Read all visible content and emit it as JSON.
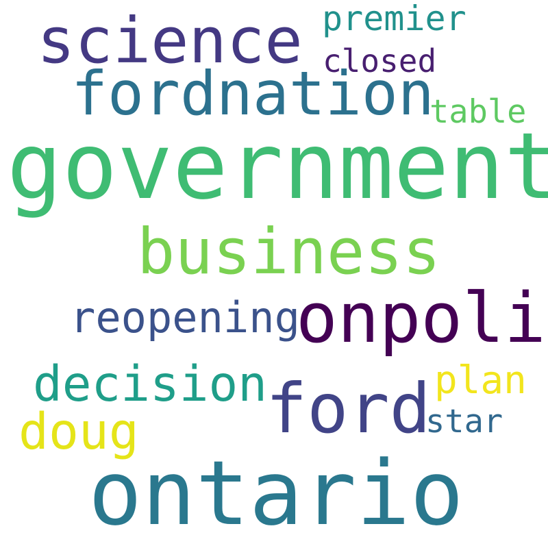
{
  "word_cloud": {
    "words": [
      {
        "text": "science",
        "color": "#443983"
      },
      {
        "text": "premier",
        "color": "#21918c"
      },
      {
        "text": "closed",
        "color": "#481f70"
      },
      {
        "text": "fordnation",
        "color": "#2c718e"
      },
      {
        "text": "table",
        "color": "#5ec962"
      },
      {
        "text": "government",
        "color": "#3fbc73"
      },
      {
        "text": "business",
        "color": "#7ad151"
      },
      {
        "text": "onpoli",
        "color": "#440154"
      },
      {
        "text": "reopening",
        "color": "#3b528b"
      },
      {
        "text": "decision",
        "color": "#1f9e89"
      },
      {
        "text": "plan",
        "color": "#f2e51d"
      },
      {
        "text": "ford",
        "color": "#414487"
      },
      {
        "text": "doug",
        "color": "#e5e419"
      },
      {
        "text": "star",
        "color": "#31688e"
      },
      {
        "text": "ontario",
        "color": "#2a788e"
      }
    ]
  }
}
